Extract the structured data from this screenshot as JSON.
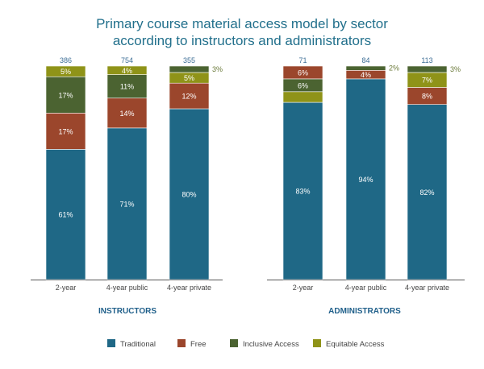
{
  "chart_data": {
    "type": "bar",
    "stacked": true,
    "title": [
      "Primary course material access model by sector",
      "according to instructors and administrators"
    ],
    "ylim": [
      0,
      100
    ],
    "unit": "%",
    "colors": {
      "Traditional": "#1f6886",
      "Free": "#9b462c",
      "Inclusive Access": "#4b6331",
      "Equitable Access": "#8f9318"
    },
    "legend": [
      "Traditional",
      "Free",
      "Inclusive Access",
      "Equitable Access"
    ],
    "legend_position": "bottom",
    "groups": [
      {
        "name": "INSTRUCTORS",
        "bars": [
          {
            "category": "2-year",
            "n": "386",
            "segments": [
              {
                "series": "Traditional",
                "value": 61,
                "label": "61%",
                "pos": "in"
              },
              {
                "series": "Free",
                "value": 17,
                "label": "17%",
                "pos": "in"
              },
              {
                "series": "Inclusive Access",
                "value": 17,
                "label": "17%",
                "pos": "in"
              },
              {
                "series": "Equitable Access",
                "value": 5,
                "label": "5%",
                "pos": "in"
              }
            ]
          },
          {
            "category": "4-year public",
            "n": "754",
            "segments": [
              {
                "series": "Traditional",
                "value": 71,
                "label": "71%",
                "pos": "in"
              },
              {
                "series": "Free",
                "value": 14,
                "label": "14%",
                "pos": "in"
              },
              {
                "series": "Inclusive Access",
                "value": 11,
                "label": "11%",
                "pos": "in"
              },
              {
                "series": "Equitable Access",
                "value": 4,
                "label": "4%",
                "pos": "in"
              }
            ]
          },
          {
            "category": "4-year private",
            "n": "355",
            "segments": [
              {
                "series": "Traditional",
                "value": 80,
                "label": "80%",
                "pos": "in"
              },
              {
                "series": "Free",
                "value": 12,
                "label": "12%",
                "pos": "in"
              },
              {
                "series": "Equitable Access",
                "value": 5,
                "label": "5%",
                "pos": "in"
              },
              {
                "series": "Inclusive Access",
                "value": 3,
                "label": "3%",
                "pos": "out"
              }
            ]
          }
        ]
      },
      {
        "name": "ADMINISTRATORS",
        "bars": [
          {
            "category": "2-year",
            "n": "71",
            "segments": [
              {
                "series": "Traditional",
                "value": 83,
                "label": "83%",
                "pos": "in"
              },
              {
                "series": "Equitable Access",
                "value": 5,
                "label": null,
                "pos": "none"
              },
              {
                "series": "Inclusive Access",
                "value": 6,
                "label": "6%",
                "pos": "in"
              },
              {
                "series": "Free",
                "value": 6,
                "label": "6%",
                "pos": "in"
              }
            ]
          },
          {
            "category": "4-year public",
            "n": "84",
            "segments": [
              {
                "series": "Traditional",
                "value": 94,
                "label": "94%",
                "pos": "in"
              },
              {
                "series": "Free",
                "value": 4,
                "label": "4%",
                "pos": "in"
              },
              {
                "series": "Inclusive Access",
                "value": 2,
                "label": "2%",
                "pos": "out"
              }
            ]
          },
          {
            "category": "4-year private",
            "n": "113",
            "segments": [
              {
                "series": "Traditional",
                "value": 82,
                "label": "82%",
                "pos": "in"
              },
              {
                "series": "Free",
                "value": 8,
                "label": "8%",
                "pos": "in"
              },
              {
                "series": "Equitable Access",
                "value": 7,
                "label": "7%",
                "pos": "in"
              },
              {
                "series": "Inclusive Access",
                "value": 3,
                "label": "3%",
                "pos": "out"
              }
            ]
          }
        ]
      }
    ]
  }
}
